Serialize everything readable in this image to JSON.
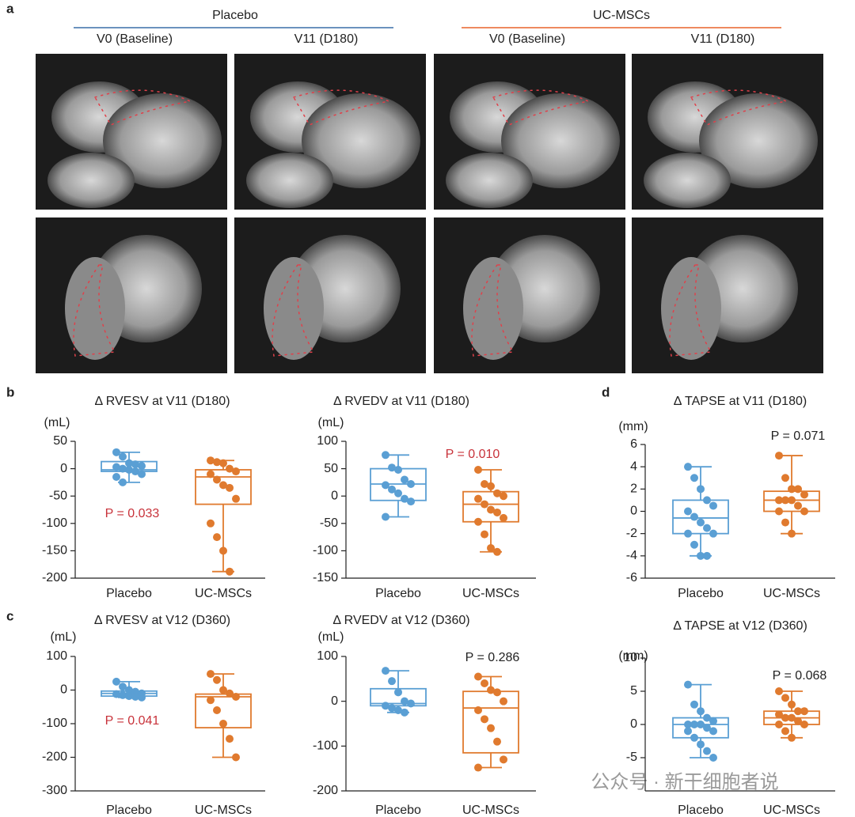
{
  "panel_labels": [
    "a",
    "b",
    "c",
    "d"
  ],
  "figure_a": {
    "groups": [
      {
        "label": "Placebo",
        "color": "#3a6fa8"
      },
      {
        "label": "UC-MSCs",
        "color": "#e8642c"
      }
    ],
    "timepoints": [
      "V0 (Baseline)",
      "V11 (D180)",
      "V0 (Baseline)",
      "V11 (D180)"
    ]
  },
  "watermark": "公众号 · 新干细胞者说",
  "chart_data": [
    {
      "type": "box",
      "title": "Δ RVESV at V11 (D180)",
      "y_label": "(mL)",
      "categories": [
        "Placebo",
        "UC-MSCs"
      ],
      "ylim": [
        -200,
        50
      ],
      "yticks": [
        50,
        0,
        -50,
        -100,
        -150,
        -200
      ],
      "annotation": {
        "text": "P = 0.033",
        "color": "#c8323a"
      },
      "groups": [
        {
          "color": "#5a9fd4",
          "whisker_low": -25,
          "q1": -5,
          "median": -2,
          "q3": 13,
          "whisker_high": 30,
          "points": [
            30,
            22,
            10,
            8,
            5,
            3,
            0,
            -2,
            -5,
            -10,
            -15,
            -25
          ]
        },
        {
          "color": "#e07a2e",
          "whisker_low": -188,
          "q1": -65,
          "median": -15,
          "q3": -2,
          "whisker_high": 15,
          "points": [
            15,
            12,
            10,
            0,
            -5,
            -10,
            -20,
            -30,
            -35,
            -55,
            -100,
            -125,
            -150,
            -188
          ]
        }
      ]
    },
    {
      "type": "box",
      "title": "Δ RVEDV at V11 (D180)",
      "y_label": "(mL)",
      "categories": [
        "Placebo",
        "UC-MSCs"
      ],
      "ylim": [
        -150,
        100
      ],
      "yticks": [
        100,
        50,
        0,
        -50,
        -100,
        -150
      ],
      "annotation": {
        "text": "P = 0.010",
        "color": "#c8323a"
      },
      "groups": [
        {
          "color": "#5a9fd4",
          "whisker_low": -38,
          "q1": -8,
          "median": 22,
          "q3": 50,
          "whisker_high": 75,
          "points": [
            75,
            52,
            48,
            30,
            22,
            20,
            12,
            5,
            -5,
            -10,
            -38
          ]
        },
        {
          "color": "#e07a2e",
          "whisker_low": -102,
          "q1": -47,
          "median": -15,
          "q3": 8,
          "whisker_high": 48,
          "points": [
            48,
            22,
            18,
            5,
            0,
            -5,
            -15,
            -25,
            -30,
            -40,
            -47,
            -70,
            -95,
            -102
          ]
        }
      ]
    },
    {
      "type": "box",
      "title": "Δ TAPSE at V11 (D180)",
      "y_label": "(mm)",
      "categories": [
        "Placebo",
        "UC-MSCs"
      ],
      "ylim": [
        -6,
        6
      ],
      "yticks": [
        6,
        4,
        2,
        0,
        -2,
        -4,
        -6
      ],
      "annotation": {
        "text": "P = 0.071",
        "color": "#222222"
      },
      "groups": [
        {
          "color": "#5a9fd4",
          "whisker_low": -4,
          "q1": -2,
          "median": -0.6,
          "q3": 1,
          "whisker_high": 4,
          "points": [
            4,
            3,
            2,
            1,
            0.5,
            0,
            -0.5,
            -1,
            -1.5,
            -2,
            -2,
            -3,
            -4,
            -4
          ]
        },
        {
          "color": "#e07a2e",
          "whisker_low": -2,
          "q1": 0,
          "median": 1,
          "q3": 1.8,
          "whisker_high": 5,
          "points": [
            5,
            3,
            2,
            2,
            1.5,
            1,
            1,
            1,
            0.5,
            0,
            0,
            -1,
            -2
          ]
        }
      ]
    },
    {
      "type": "box",
      "title": "Δ RVESV at V12 (D360)",
      "y_label": "(mL)",
      "categories": [
        "Placebo",
        "UC-MSCs"
      ],
      "ylim": [
        -300,
        100
      ],
      "yticks": [
        100,
        0,
        -100,
        -200,
        -300
      ],
      "annotation": {
        "text": "P = 0.041",
        "color": "#c8323a"
      },
      "groups": [
        {
          "color": "#5a9fd4",
          "whisker_low": -22,
          "q1": -18,
          "median": -10,
          "q3": -3,
          "whisker_high": 25,
          "points": [
            25,
            10,
            0,
            -5,
            -10,
            -12,
            -15,
            -18,
            -20,
            -22
          ]
        },
        {
          "color": "#e07a2e",
          "whisker_low": -200,
          "q1": -112,
          "median": -20,
          "q3": -12,
          "whisker_high": 48,
          "points": [
            48,
            30,
            0,
            -10,
            -20,
            -30,
            -60,
            -100,
            -145,
            -200
          ]
        }
      ]
    },
    {
      "type": "box",
      "title": "Δ RVEDV at V12 (D360)",
      "y_label": "(mL)",
      "categories": [
        "Placebo",
        "UC-MSCs"
      ],
      "ylim": [
        -200,
        100
      ],
      "yticks": [
        100,
        0,
        -100,
        -200
      ],
      "annotation": {
        "text": "P = 0.286",
        "color": "#222222"
      },
      "groups": [
        {
          "color": "#5a9fd4",
          "whisker_low": -25,
          "q1": -10,
          "median": -5,
          "q3": 28,
          "whisker_high": 68,
          "points": [
            68,
            45,
            20,
            0,
            -5,
            -10,
            -15,
            -20,
            -25
          ]
        },
        {
          "color": "#e07a2e",
          "whisker_low": -148,
          "q1": -115,
          "median": -15,
          "q3": 22,
          "whisker_high": 55,
          "points": [
            55,
            40,
            25,
            20,
            0,
            -20,
            -40,
            -60,
            -90,
            -130,
            -148
          ]
        }
      ]
    },
    {
      "type": "box",
      "title": "Δ TAPSE at V12 (D360)",
      "y_label": "(mm)",
      "categories": [
        "Placebo",
        "UC-MSCs"
      ],
      "ylim": [
        -5,
        10
      ],
      "yticks": [
        10,
        5,
        0,
        -5
      ],
      "annotation": {
        "text": "P = 0.068",
        "color": "#222222"
      },
      "groups": [
        {
          "color": "#5a9fd4",
          "whisker_low": -5,
          "q1": -2,
          "median": 0,
          "q3": 1,
          "whisker_high": 6,
          "points": [
            6,
            3,
            2,
            1,
            0.5,
            0,
            0,
            0,
            -0.5,
            -1,
            -1,
            -2,
            -3,
            -4,
            -5
          ]
        },
        {
          "color": "#e07a2e",
          "whisker_low": -2,
          "q1": 0,
          "median": 1,
          "q3": 2,
          "whisker_high": 5,
          "points": [
            5,
            4,
            3,
            2,
            2,
            1.5,
            1,
            1,
            0.5,
            0,
            0,
            -1,
            -2
          ]
        }
      ]
    }
  ]
}
